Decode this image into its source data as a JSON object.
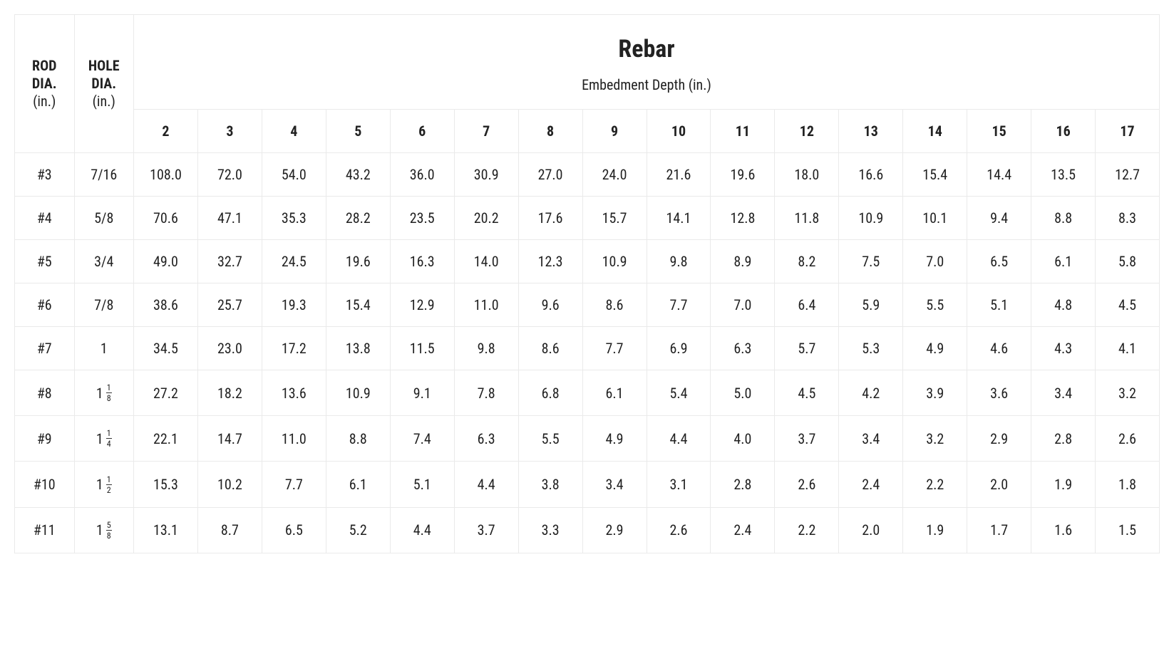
{
  "table": {
    "type": "table",
    "colors": {
      "background": "#ffffff",
      "border": "#eaeaea",
      "text": "#222222"
    },
    "typography": {
      "body_fontsize_pt": 15,
      "header_fontsize_pt": 15,
      "title_fontsize_pt": 26,
      "font_family": "Roboto Condensed"
    },
    "header": {
      "rod_dia_label": "ROD DIA.",
      "rod_dia_unit": "(in.)",
      "hole_dia_label": "HOLE DIA.",
      "hole_dia_unit": "(in.)",
      "title": "Rebar",
      "subtitle": "Embedment Depth (in.)",
      "depth_columns": [
        "2",
        "3",
        "4",
        "5",
        "6",
        "7",
        "8",
        "9",
        "10",
        "11",
        "12",
        "13",
        "14",
        "15",
        "16",
        "17"
      ]
    },
    "rows": [
      {
        "rod": "#3",
        "hole": {
          "plain": "7/16"
        },
        "values": [
          "108.0",
          "72.0",
          "54.0",
          "43.2",
          "36.0",
          "30.9",
          "27.0",
          "24.0",
          "21.6",
          "19.6",
          "18.0",
          "16.6",
          "15.4",
          "14.4",
          "13.5",
          "12.7"
        ]
      },
      {
        "rod": "#4",
        "hole": {
          "plain": "5/8"
        },
        "values": [
          "70.6",
          "47.1",
          "35.3",
          "28.2",
          "23.5",
          "20.2",
          "17.6",
          "15.7",
          "14.1",
          "12.8",
          "11.8",
          "10.9",
          "10.1",
          "9.4",
          "8.8",
          "8.3"
        ]
      },
      {
        "rod": "#5",
        "hole": {
          "plain": "3/4"
        },
        "values": [
          "49.0",
          "32.7",
          "24.5",
          "19.6",
          "16.3",
          "14.0",
          "12.3",
          "10.9",
          "9.8",
          "8.9",
          "8.2",
          "7.5",
          "7.0",
          "6.5",
          "6.1",
          "5.8"
        ]
      },
      {
        "rod": "#6",
        "hole": {
          "plain": "7/8"
        },
        "values": [
          "38.6",
          "25.7",
          "19.3",
          "15.4",
          "12.9",
          "11.0",
          "9.6",
          "8.6",
          "7.7",
          "7.0",
          "6.4",
          "5.9",
          "5.5",
          "5.1",
          "4.8",
          "4.5"
        ]
      },
      {
        "rod": "#7",
        "hole": {
          "plain": "1"
        },
        "values": [
          "34.5",
          "23.0",
          "17.2",
          "13.8",
          "11.5",
          "9.8",
          "8.6",
          "7.7",
          "6.9",
          "6.3",
          "5.7",
          "5.3",
          "4.9",
          "4.6",
          "4.3",
          "4.1"
        ]
      },
      {
        "rod": "#8",
        "hole": {
          "whole": "1",
          "num": "1",
          "den": "8"
        },
        "values": [
          "27.2",
          "18.2",
          "13.6",
          "10.9",
          "9.1",
          "7.8",
          "6.8",
          "6.1",
          "5.4",
          "5.0",
          "4.5",
          "4.2",
          "3.9",
          "3.6",
          "3.4",
          "3.2"
        ]
      },
      {
        "rod": "#9",
        "hole": {
          "whole": "1",
          "num": "1",
          "den": "4"
        },
        "values": [
          "22.1",
          "14.7",
          "11.0",
          "8.8",
          "7.4",
          "6.3",
          "5.5",
          "4.9",
          "4.4",
          "4.0",
          "3.7",
          "3.4",
          "3.2",
          "2.9",
          "2.8",
          "2.6"
        ]
      },
      {
        "rod": "#10",
        "hole": {
          "whole": "1",
          "num": "1",
          "den": "2"
        },
        "values": [
          "15.3",
          "10.2",
          "7.7",
          "6.1",
          "5.1",
          "4.4",
          "3.8",
          "3.4",
          "3.1",
          "2.8",
          "2.6",
          "2.4",
          "2.2",
          "2.0",
          "1.9",
          "1.8"
        ]
      },
      {
        "rod": "#11",
        "hole": {
          "whole": "1",
          "num": "5",
          "den": "8"
        },
        "values": [
          "13.1",
          "8.7",
          "6.5",
          "5.2",
          "4.4",
          "3.7",
          "3.3",
          "2.9",
          "2.6",
          "2.4",
          "2.2",
          "2.0",
          "1.9",
          "1.7",
          "1.6",
          "1.5"
        ]
      }
    ]
  }
}
